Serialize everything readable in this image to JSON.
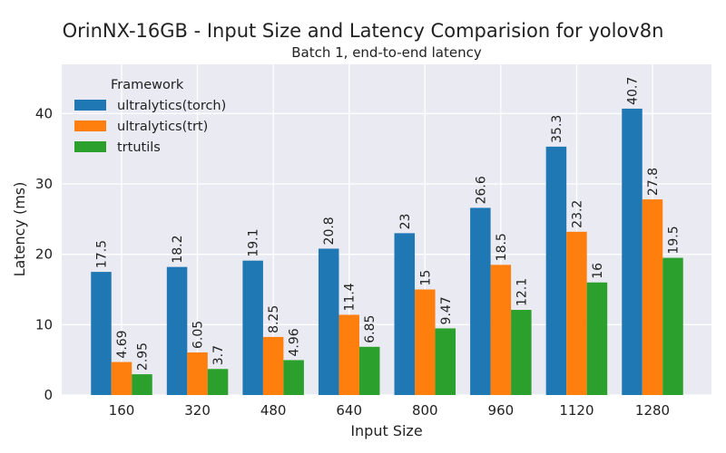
{
  "chart_data": {
    "type": "bar",
    "title": "OrinNX-16GB - Input Size and Latency Comparision for yolov8n",
    "subtitle": "Batch 1, end-to-end latency",
    "xlabel": "Input Size",
    "ylabel": "Latency (ms)",
    "categories": [
      "160",
      "320",
      "480",
      "640",
      "800",
      "960",
      "1120",
      "1280"
    ],
    "ylim": [
      0,
      47
    ],
    "yticks": [
      0,
      10,
      20,
      30,
      40
    ],
    "grid": true,
    "legend_title": "Framework",
    "legend_position": "top-left",
    "series": [
      {
        "name": "ultralytics(torch)",
        "color": "#1f77b4",
        "values": [
          17.5,
          18.2,
          19.1,
          20.8,
          23,
          26.6,
          35.3,
          40.7
        ],
        "labels": [
          "17.5",
          "18.2",
          "19.1",
          "20.8",
          "23",
          "26.6",
          "35.3",
          "40.7"
        ]
      },
      {
        "name": "ultralytics(trt)",
        "color": "#ff7f0e",
        "values": [
          4.69,
          6.05,
          8.25,
          11.4,
          15,
          18.5,
          23.2,
          27.8
        ],
        "labels": [
          "4.69",
          "6.05",
          "8.25",
          "11.4",
          "15",
          "18.5",
          "23.2",
          "27.8"
        ]
      },
      {
        "name": "trtutils",
        "color": "#2ca02c",
        "values": [
          2.95,
          3.7,
          4.96,
          6.85,
          9.47,
          12.1,
          16,
          19.5
        ],
        "labels": [
          "2.95",
          "3.7",
          "4.96",
          "6.85",
          "9.47",
          "12.1",
          "16",
          "19.5"
        ]
      }
    ]
  }
}
